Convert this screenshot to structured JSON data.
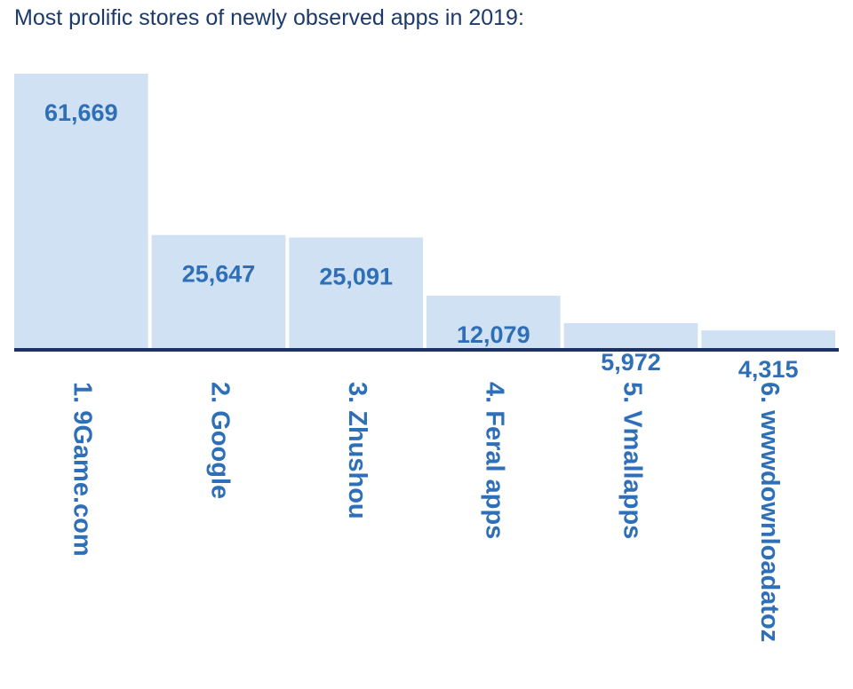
{
  "title": "Most prolific stores of newly observed apps in 2019:",
  "colors": {
    "title": "#1b3a6b",
    "bar": "#cfe1f3",
    "label": "#2e6fb7",
    "baseline": "#1b3260"
  },
  "chart_data": {
    "type": "bar",
    "title": "Most prolific stores of newly observed apps in 2019:",
    "xlabel": "",
    "ylabel": "",
    "grid": false,
    "legend": "none",
    "ylim": [
      0,
      61669
    ],
    "categories": [
      "1. 9Game.com",
      "2. Google",
      "3. Zhushou",
      "4. Feral apps",
      "5. Vmallapps",
      "6. wwwdownloadatoz"
    ],
    "values": [
      61669,
      25647,
      25091,
      12079,
      5972,
      4315
    ],
    "data_labels": [
      "61,669",
      "25,647",
      "25,091",
      "12,079",
      "5,972",
      "4,315"
    ]
  }
}
